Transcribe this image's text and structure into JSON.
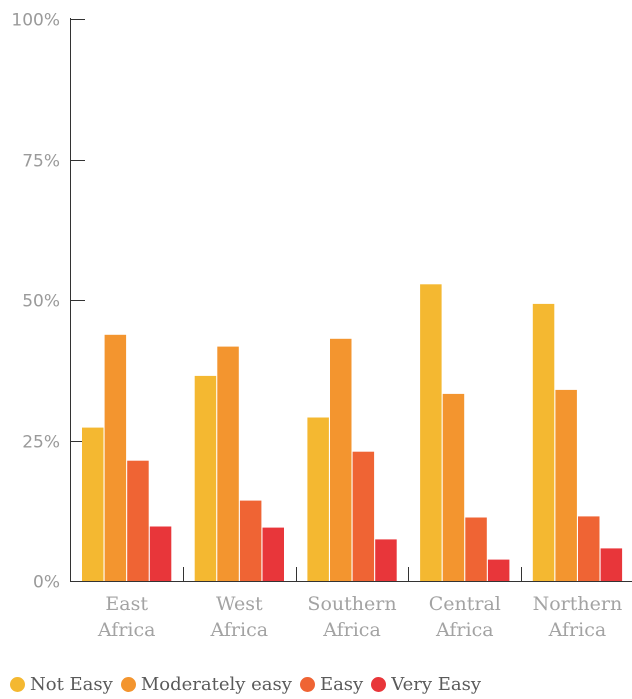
{
  "chart_data": {
    "type": "bar",
    "title": "",
    "xlabel": "",
    "ylabel": "",
    "ylim": [
      0,
      100
    ],
    "yticks": [
      "0%",
      "25%",
      "50%",
      "75%",
      "100%"
    ],
    "ytick_values": [
      0,
      25,
      50,
      75,
      100
    ],
    "grid": false,
    "legend_position": "bottom",
    "categories": [
      [
        "East",
        "Africa"
      ],
      [
        "West",
        "Africa"
      ],
      [
        "Southern",
        "Africa"
      ],
      [
        "Central",
        "Africa"
      ],
      [
        "Northern",
        "Africa"
      ]
    ],
    "series": [
      {
        "name": "Not Easy",
        "color": "#f4b831",
        "values": [
          27.3,
          36.5,
          29.1,
          52.8,
          49.3
        ]
      },
      {
        "name": "Moderately easy",
        "color": "#f3952f",
        "values": [
          43.8,
          41.7,
          43.1,
          33.3,
          34.0
        ]
      },
      {
        "name": "Easy",
        "color": "#ef6434",
        "values": [
          21.4,
          14.3,
          23.0,
          11.3,
          11.5
        ]
      },
      {
        "name": "Very Easy",
        "color": "#e8363a",
        "values": [
          9.7,
          9.5,
          7.4,
          3.8,
          5.8
        ]
      }
    ]
  }
}
